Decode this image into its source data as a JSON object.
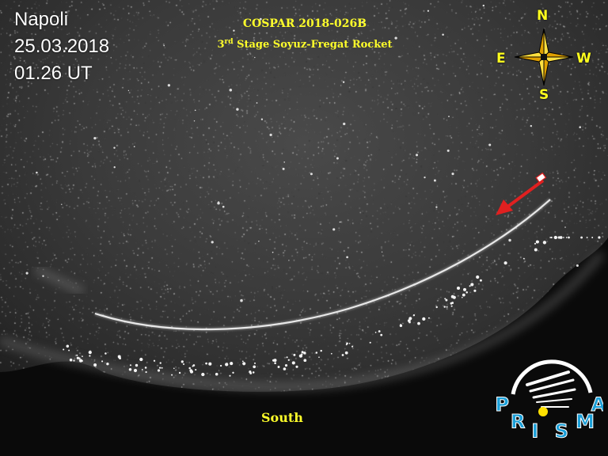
{
  "overlay": {
    "location": "Napoli",
    "date": "25.03.2018",
    "time": "01.26 UT",
    "title": "COSPAR 2018-026B",
    "subtitle_ordinal_number": "3",
    "subtitle_ordinal_suffix": "rd",
    "subtitle_text": " Stage Soyuz-Fregat Rocket",
    "south_label": "South"
  },
  "compass": {
    "north": "N",
    "south": "S",
    "east": "E",
    "west": "W"
  },
  "logo": {
    "text": "PRISMA"
  },
  "colors": {
    "caption_yellow": "#ffff2a",
    "info_white": "#ffffff",
    "arrow_red": "#e02020",
    "logo_blue": "#1a9fd8",
    "compass_fill": "#ffe040"
  },
  "icons": {
    "direction_arrow": "red-arrow-icon",
    "compass": "compass-rose-icon",
    "logo": "prisma-logo"
  }
}
